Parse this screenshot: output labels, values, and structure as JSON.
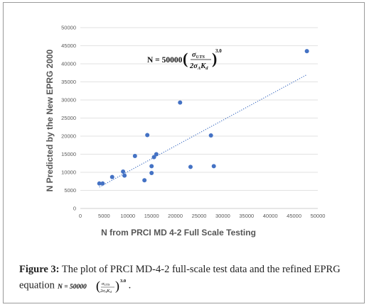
{
  "chart_data": {
    "type": "scatter",
    "xlabel": "N from PRCI MD 4-2 Full Scale Testing",
    "ylabel": "N Predicted by the New EPRG 2000",
    "xlim": [
      0,
      50000
    ],
    "ylim": [
      0,
      50000
    ],
    "x_ticks": [
      "0",
      "5000",
      "10000",
      "15000",
      "20000",
      "25000",
      "30000",
      "35000",
      "40000",
      "45000",
      "50000"
    ],
    "y_ticks": [
      "0",
      "5000",
      "10000",
      "15000",
      "20000",
      "25000",
      "30000",
      "35000",
      "40000",
      "45000",
      "50000"
    ],
    "grid": "horizontal",
    "legend": "none",
    "point_color": "#4472C4",
    "trendline": {
      "style": "dotted",
      "color": "#4472C4",
      "from": [
        4000,
        5900
      ],
      "to": [
        47700,
        37000
      ]
    },
    "points": [
      {
        "x": 4000,
        "y": 6900
      },
      {
        "x": 4700,
        "y": 6900
      },
      {
        "x": 6700,
        "y": 8700
      },
      {
        "x": 9000,
        "y": 10200
      },
      {
        "x": 9300,
        "y": 9100
      },
      {
        "x": 11500,
        "y": 14500
      },
      {
        "x": 13500,
        "y": 7800
      },
      {
        "x": 14100,
        "y": 20300
      },
      {
        "x": 15000,
        "y": 11700
      },
      {
        "x": 15000,
        "y": 9800
      },
      {
        "x": 15500,
        "y": 14200
      },
      {
        "x": 16000,
        "y": 15000
      },
      {
        "x": 21000,
        "y": 29300
      },
      {
        "x": 23200,
        "y": 11500
      },
      {
        "x": 27500,
        "y": 20200
      },
      {
        "x": 28100,
        "y": 11700
      },
      {
        "x": 47700,
        "y": 43500
      }
    ],
    "annotation": {
      "lhs": "N = 50000",
      "num_sym": "σ",
      "num_sub": "UTS",
      "den_sym": "2σ",
      "den_sub": "A",
      "den_sym2": "K",
      "den_sub2": "d",
      "exponent": "3.0"
    }
  },
  "caption": {
    "label": "Figure 3:",
    "text": " The plot of PRCI MD-4-2 full-scale test data and the refined EPRG equation ",
    "equation_lhs": "N = 50000",
    "equation_exponent": "3.0",
    "end": "."
  }
}
